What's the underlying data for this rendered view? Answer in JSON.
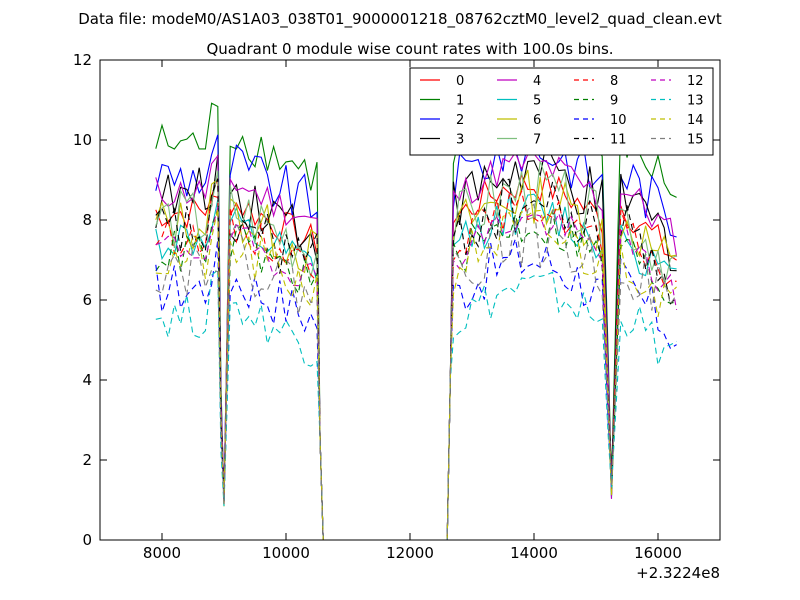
{
  "header": {
    "suptitle": "Data file: modeM0/AS1A03_038T01_9000001218_08762cztM0_level2_quad_clean.evt",
    "title": "Quadrant 0 module wise count rates with 100.0s bins."
  },
  "chart_data": {
    "type": "line",
    "xlim": [
      7000,
      17000
    ],
    "ylim": [
      0,
      12
    ],
    "x_ticks": [
      8000,
      10000,
      12000,
      14000,
      16000
    ],
    "x_tick_labels": [
      "8000",
      "10000",
      "12000",
      "14000",
      "16000"
    ],
    "y_ticks": [
      0,
      2,
      4,
      6,
      8,
      10,
      12
    ],
    "y_tick_labels": [
      "0",
      "2",
      "4",
      "6",
      "8",
      "10",
      "12"
    ],
    "x_offset_label": "+2.3224e8",
    "grid": false,
    "legend_position": "top-right",
    "legend_columns": 4,
    "segments": [
      [
        7900,
        8900
      ],
      [
        9100,
        10500
      ],
      [
        12700,
        15100
      ],
      [
        15400,
        16300
      ]
    ],
    "drops": {
      "dip1": 9000,
      "dip2": 15250,
      "gap_start": 10600,
      "gap_end": 12600
    },
    "series": [
      {
        "name": "0",
        "color": "#ff0000",
        "dash": "solid",
        "level": 8.2
      },
      {
        "name": "1",
        "color": "#008000",
        "dash": "solid",
        "level": 9.9
      },
      {
        "name": "2",
        "color": "#0000ff",
        "dash": "solid",
        "level": 9.1
      },
      {
        "name": "3",
        "color": "#000000",
        "dash": "solid",
        "level": 8.5
      },
      {
        "name": "4",
        "color": "#bf00bf",
        "dash": "solid",
        "level": 8.7
      },
      {
        "name": "5",
        "color": "#00bfbf",
        "dash": "solid",
        "level": 7.5
      },
      {
        "name": "6",
        "color": "#bfbf00",
        "dash": "solid",
        "level": 7.9
      },
      {
        "name": "7",
        "color": "#7fbf7f",
        "dash": "solid",
        "level": 8.0
      },
      {
        "name": "8",
        "color": "#ff0000",
        "dash": "dashed",
        "level": 7.6
      },
      {
        "name": "9",
        "color": "#008000",
        "dash": "dashed",
        "level": 7.2
      },
      {
        "name": "10",
        "color": "#0000ff",
        "dash": "dashed",
        "level": 6.3
      },
      {
        "name": "11",
        "color": "#000000",
        "dash": "dashed",
        "level": 7.7
      },
      {
        "name": "12",
        "color": "#bf00bf",
        "dash": "dashed",
        "level": 7.3
      },
      {
        "name": "13",
        "color": "#00bfbf",
        "dash": "dashed",
        "level": 5.6
      },
      {
        "name": "14",
        "color": "#bfbf00",
        "dash": "dashed",
        "level": 7.0
      },
      {
        "name": "15",
        "color": "#7f7f7f",
        "dash": "dashed",
        "level": 6.9
      }
    ]
  }
}
